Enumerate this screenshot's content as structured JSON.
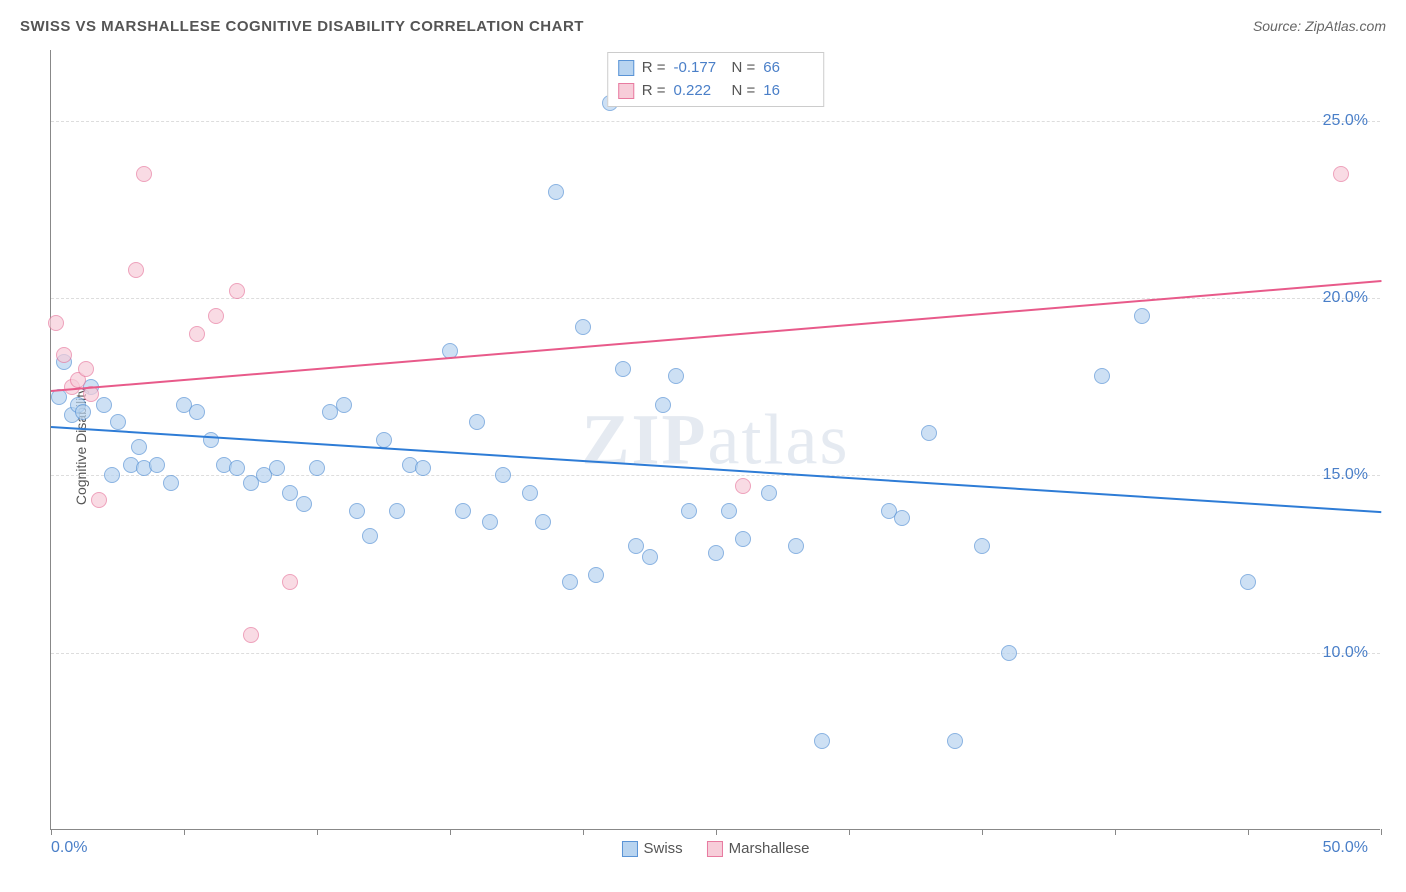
{
  "chart": {
    "type": "scatter",
    "title": "SWISS VS MARSHALLESE COGNITIVE DISABILITY CORRELATION CHART",
    "source_label": "Source: ZipAtlas.com",
    "y_axis_title": "Cognitive Disability",
    "watermark_prefix": "ZIP",
    "watermark_suffix": "atlas",
    "background_color": "#ffffff",
    "grid_color": "#dddddd",
    "axis_color": "#888888",
    "title_color": "#555555",
    "title_fontsize": 15,
    "source_fontsize": 14,
    "tick_label_color": "#4a7fc8",
    "tick_label_fontsize": 16,
    "xlim": [
      0,
      50
    ],
    "ylim": [
      5,
      27
    ],
    "x_tick_positions": [
      0,
      5,
      10,
      15,
      20,
      25,
      30,
      35,
      40,
      45,
      50
    ],
    "x_tick_labels_shown": {
      "0": "0.0%",
      "50": "50.0%"
    },
    "y_gridlines": [
      10,
      15,
      20,
      25
    ],
    "y_tick_labels": {
      "10": "10.0%",
      "15": "15.0%",
      "20": "20.0%",
      "25": "25.0%"
    },
    "point_radius": 8,
    "point_border_width": 1,
    "series": [
      {
        "name": "Swiss",
        "fill_color": "#b8d4f0",
        "border_color": "#5a94d6",
        "fill_opacity": 0.7,
        "legend_stats": {
          "R": "-0.177",
          "N": "66"
        },
        "trend": {
          "x1": 0,
          "y1": 16.4,
          "x2": 50,
          "y2": 14.0,
          "color": "#2e7cd6",
          "width": 2
        },
        "points": [
          [
            0.3,
            17.2
          ],
          [
            0.5,
            18.2
          ],
          [
            0.8,
            16.7
          ],
          [
            1.0,
            17.0
          ],
          [
            1.2,
            16.8
          ],
          [
            1.5,
            17.5
          ],
          [
            2.0,
            17.0
          ],
          [
            2.3,
            15.0
          ],
          [
            2.5,
            16.5
          ],
          [
            3.0,
            15.3
          ],
          [
            3.3,
            15.8
          ],
          [
            3.5,
            15.2
          ],
          [
            4.0,
            15.3
          ],
          [
            4.5,
            14.8
          ],
          [
            5.0,
            17.0
          ],
          [
            5.5,
            16.8
          ],
          [
            6.0,
            16.0
          ],
          [
            6.5,
            15.3
          ],
          [
            7.0,
            15.2
          ],
          [
            7.5,
            14.8
          ],
          [
            8.0,
            15.0
          ],
          [
            8.5,
            15.2
          ],
          [
            9.0,
            14.5
          ],
          [
            9.5,
            14.2
          ],
          [
            10.0,
            15.2
          ],
          [
            10.5,
            16.8
          ],
          [
            11.0,
            17.0
          ],
          [
            11.5,
            14.0
          ],
          [
            12.0,
            13.3
          ],
          [
            12.5,
            16.0
          ],
          [
            13.0,
            14.0
          ],
          [
            13.5,
            15.3
          ],
          [
            14.0,
            15.2
          ],
          [
            15.0,
            18.5
          ],
          [
            15.5,
            14.0
          ],
          [
            16.0,
            16.5
          ],
          [
            16.5,
            13.7
          ],
          [
            17.0,
            15.0
          ],
          [
            18.0,
            14.5
          ],
          [
            18.5,
            13.7
          ],
          [
            19.0,
            23.0
          ],
          [
            19.5,
            12.0
          ],
          [
            20.0,
            19.2
          ],
          [
            20.5,
            12.2
          ],
          [
            21.0,
            25.5
          ],
          [
            21.5,
            18.0
          ],
          [
            22.0,
            13.0
          ],
          [
            22.5,
            12.7
          ],
          [
            23.0,
            17.0
          ],
          [
            23.5,
            17.8
          ],
          [
            24.0,
            14.0
          ],
          [
            25.0,
            12.8
          ],
          [
            25.5,
            14.0
          ],
          [
            26.0,
            13.2
          ],
          [
            27.0,
            14.5
          ],
          [
            28.0,
            13.0
          ],
          [
            29.0,
            7.5
          ],
          [
            31.5,
            14.0
          ],
          [
            32.0,
            13.8
          ],
          [
            33.0,
            16.2
          ],
          [
            34.0,
            7.5
          ],
          [
            35.0,
            13.0
          ],
          [
            36.0,
            10.0
          ],
          [
            39.5,
            17.8
          ],
          [
            41.0,
            19.5
          ],
          [
            45.0,
            12.0
          ]
        ]
      },
      {
        "name": "Marshallese",
        "fill_color": "#f7cdd9",
        "border_color": "#e87ba0",
        "fill_opacity": 0.7,
        "legend_stats": {
          "R": "0.222",
          "N": "16"
        },
        "trend": {
          "x1": 0,
          "y1": 17.4,
          "x2": 50,
          "y2": 20.5,
          "color": "#e85a8a",
          "width": 2
        },
        "points": [
          [
            0.2,
            19.3
          ],
          [
            0.5,
            18.4
          ],
          [
            0.8,
            17.5
          ],
          [
            1.0,
            17.7
          ],
          [
            1.3,
            18.0
          ],
          [
            1.5,
            17.3
          ],
          [
            1.8,
            14.3
          ],
          [
            3.2,
            20.8
          ],
          [
            3.5,
            23.5
          ],
          [
            5.5,
            19.0
          ],
          [
            6.2,
            19.5
          ],
          [
            7.0,
            20.2
          ],
          [
            7.5,
            10.5
          ],
          [
            9.0,
            12.0
          ],
          [
            26.0,
            14.7
          ],
          [
            48.5,
            23.5
          ]
        ]
      }
    ]
  }
}
